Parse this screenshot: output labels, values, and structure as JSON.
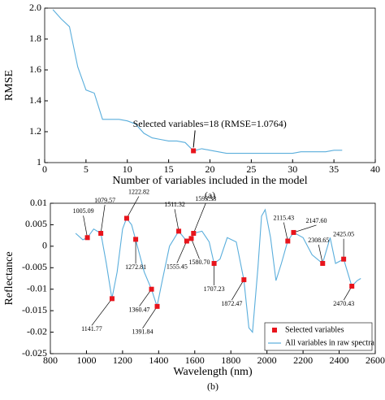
{
  "chart_data": [
    {
      "type": "line",
      "x_label": "Number of variables included in the model",
      "y_label": "RMSE",
      "caption": "(a)",
      "x": [
        1,
        2,
        3,
        4,
        5,
        6,
        7,
        8,
        9,
        10,
        11,
        12,
        13,
        14,
        15,
        16,
        17,
        18,
        19,
        20,
        21,
        22,
        23,
        24,
        25,
        26,
        27,
        28,
        29,
        30,
        31,
        32,
        33,
        34,
        35,
        36
      ],
      "values": [
        1.99,
        1.93,
        1.88,
        1.62,
        1.47,
        1.45,
        1.28,
        1.28,
        1.28,
        1.27,
        1.25,
        1.19,
        1.16,
        1.15,
        1.14,
        1.14,
        1.13,
        1.0764,
        1.09,
        1.08,
        1.07,
        1.06,
        1.06,
        1.06,
        1.06,
        1.06,
        1.06,
        1.06,
        1.06,
        1.06,
        1.07,
        1.07,
        1.07,
        1.07,
        1.08,
        1.08
      ],
      "color": "#5aaedc",
      "highlight": {
        "x": 18,
        "value": 1.0764,
        "color": "#e8141c"
      },
      "annotation": "Selected variables=18 (RMSE=1.0764)",
      "xlim": [
        0,
        40
      ],
      "xticks": [
        0,
        5,
        10,
        15,
        20,
        25,
        30,
        35,
        40
      ],
      "ylim": [
        1,
        2
      ],
      "yticks": [
        1,
        1.2,
        1.4,
        1.6,
        1.8,
        {
          "value": 2,
          "label": "2.0"
        }
      ]
    },
    {
      "type": "line",
      "x_label": "Wavelength (nm)",
      "y_label": "Reflectance",
      "caption": "(b)",
      "legend": "lower right",
      "series": [
        {
          "name": "Selected variables",
          "color": "#e8141c",
          "style": "markers",
          "x": [
            1005.09,
            1079.57,
            1141.77,
            1222.82,
            1272.81,
            1360.47,
            1391.84,
            1511.32,
            1555.45,
            1580.7,
            1593.33,
            1707.23,
            1872.47,
            2115.43,
            2147.6,
            2308.65,
            2425.05,
            2470.43
          ],
          "point_labels": [
            "1005.09",
            "1079.57",
            "1141.77",
            "1222.82",
            "1272.81",
            "1360.47",
            "1391.84",
            "1511.32",
            "1555.45",
            "1580.70",
            "1593.33",
            "1707.23",
            "1872.47",
            "2115.43",
            "2147.60",
            "2308.65",
            "2425.05",
            "2470.43"
          ],
          "values": [
            0.002,
            0.003,
            -0.0122,
            0.0065,
            0.0016,
            -0.01,
            -0.014,
            0.0035,
            0.0012,
            0.0018,
            0.003,
            -0.004,
            -0.0078,
            0.0012,
            0.0032,
            -0.004,
            -0.003,
            -0.0093
          ]
        },
        {
          "name": "All variables in raw spectra",
          "color": "#5aaedc",
          "style": "line",
          "x": [
            940,
            980,
            1005,
            1040,
            1080,
            1110,
            1141,
            1170,
            1200,
            1222,
            1250,
            1272,
            1320,
            1360,
            1391,
            1420,
            1460,
            1511,
            1555,
            1580,
            1593,
            1640,
            1680,
            1707,
            1740,
            1780,
            1830,
            1872,
            1900,
            1920,
            1950,
            1970,
            1990,
            2020,
            2050,
            2080,
            2115,
            2147,
            2200,
            2250,
            2308,
            2350,
            2380,
            2425,
            2470,
            2500,
            2520
          ],
          "values": [
            0.003,
            0.0015,
            0.002,
            0.004,
            0.003,
            -0.004,
            -0.0122,
            -0.006,
            0.004,
            0.0065,
            0.005,
            0.0016,
            -0.006,
            -0.01,
            -0.014,
            -0.008,
            0,
            0.0035,
            0.0012,
            0.0018,
            0.003,
            0.0035,
            0.001,
            -0.004,
            -0.003,
            0.002,
            0.001,
            -0.0078,
            -0.019,
            -0.02,
            -0.005,
            0.007,
            0.0085,
            0.002,
            -0.008,
            -0.004,
            0.0012,
            0.0032,
            0.002,
            -0.002,
            -0.004,
            0.002,
            -0.004,
            -0.003,
            -0.0093,
            -0.008,
            -0.0075
          ]
        }
      ],
      "xlim": [
        800,
        2600
      ],
      "xticks": [
        800,
        1000,
        1200,
        1400,
        1600,
        1800,
        2000,
        2200,
        2400,
        2600
      ],
      "ylim": [
        -0.025,
        0.01
      ],
      "yticks": [
        -0.025,
        -0.02,
        -0.015,
        -0.01,
        -0.005,
        0,
        0.005,
        0.01
      ]
    }
  ]
}
